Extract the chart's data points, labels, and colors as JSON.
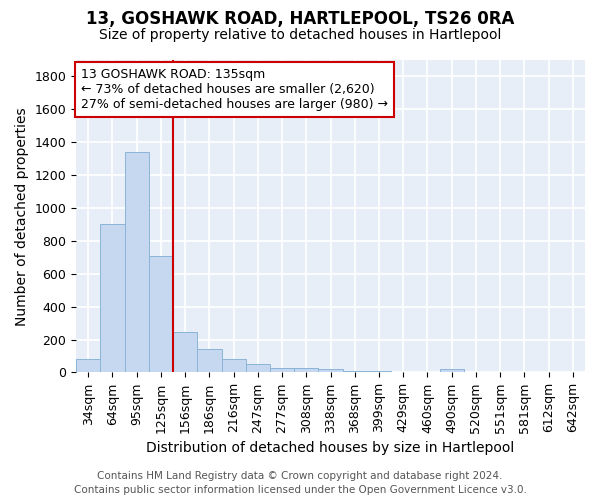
{
  "title": "13, GOSHAWK ROAD, HARTLEPOOL, TS26 0RA",
  "subtitle": "Size of property relative to detached houses in Hartlepool",
  "xlabel": "Distribution of detached houses by size in Hartlepool",
  "ylabel": "Number of detached properties",
  "categories": [
    "34sqm",
    "64sqm",
    "95sqm",
    "125sqm",
    "156sqm",
    "186sqm",
    "216sqm",
    "247sqm",
    "277sqm",
    "308sqm",
    "338sqm",
    "368sqm",
    "399sqm",
    "429sqm",
    "460sqm",
    "490sqm",
    "520sqm",
    "551sqm",
    "581sqm",
    "612sqm",
    "642sqm"
  ],
  "values": [
    82,
    905,
    1340,
    710,
    245,
    140,
    80,
    52,
    28,
    25,
    18,
    10,
    10,
    0,
    0,
    20,
    0,
    0,
    0,
    0,
    0
  ],
  "bar_color": "#c5d8f0",
  "bar_edge_color": "#8ab4d8",
  "vline_color": "#cc0000",
  "vline_x_index": 3.5,
  "annotation_text": "13 GOSHAWK ROAD: 135sqm\n← 73% of detached houses are smaller (2,620)\n27% of semi-detached houses are larger (980) →",
  "annotation_box_facecolor": "white",
  "annotation_box_edgecolor": "#cc0000",
  "ylim": [
    0,
    1900
  ],
  "yticks": [
    0,
    200,
    400,
    600,
    800,
    1000,
    1200,
    1400,
    1600,
    1800
  ],
  "background_color": "#e8eef8",
  "grid_color": "white",
  "title_fontsize": 12,
  "subtitle_fontsize": 10,
  "axis_label_fontsize": 10,
  "tick_fontsize": 9,
  "annotation_fontsize": 9,
  "footer_fontsize": 7.5,
  "footer1": "Contains HM Land Registry data © Crown copyright and database right 2024.",
  "footer2": "Contains public sector information licensed under the Open Government Licence v3.0."
}
